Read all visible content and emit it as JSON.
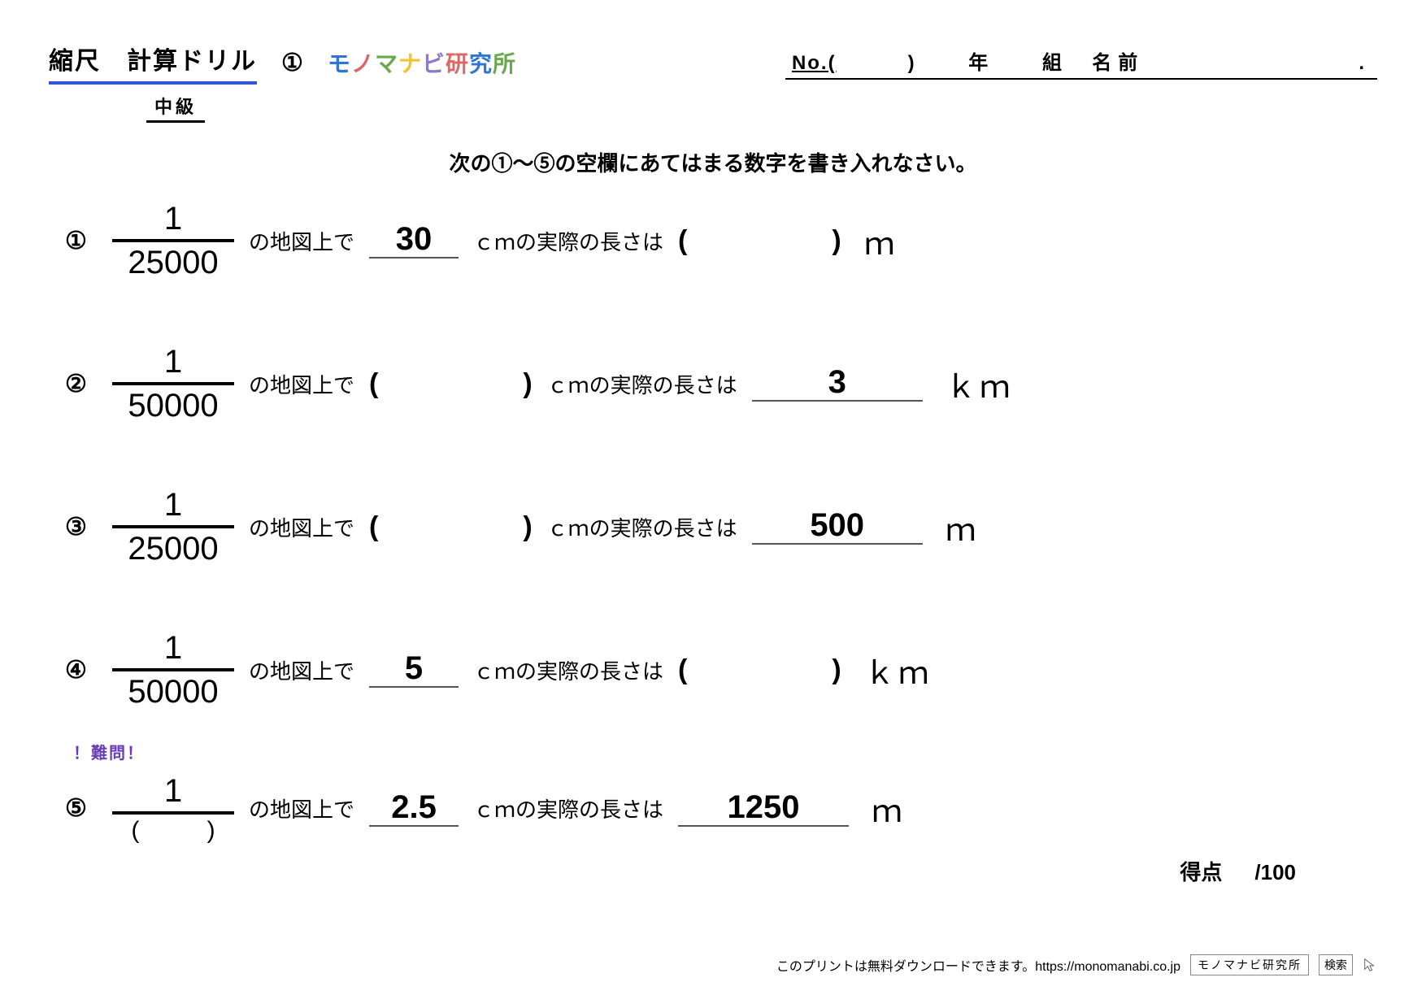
{
  "header": {
    "title": "縮尺　計算ドリル",
    "sheet_number": "①",
    "logo_chars": [
      "モ",
      "ノ",
      "マ",
      "ナ",
      "ビ",
      "研",
      "究",
      "所"
    ],
    "info": {
      "no_label": "No.(",
      "no_close": ")",
      "year": "年",
      "class": "組",
      "name": "名前",
      "end": "."
    },
    "level": "中級"
  },
  "instruction": "次の①〜⑤の空欄にあてはまる数字を書き入れなさい。",
  "problems": [
    {
      "num": "①",
      "frac_top": "1",
      "frac_bot": "25000",
      "text_after_frac": "の地図上で",
      "map_value": "30",
      "map_is_given": true,
      "mid_text": "ｃｍの実際の長さは",
      "real_value": "",
      "real_is_given": false,
      "unit": "ｍ",
      "hard": false
    },
    {
      "num": "②",
      "frac_top": "1",
      "frac_bot": "50000",
      "text_after_frac": "の地図上で",
      "map_value": "",
      "map_is_given": false,
      "mid_text": "ｃｍの実際の長さは",
      "real_value": "3",
      "real_is_given": true,
      "unit": "ｋｍ",
      "hard": false
    },
    {
      "num": "③",
      "frac_top": "1",
      "frac_bot": "25000",
      "text_after_frac": "の地図上で",
      "map_value": "",
      "map_is_given": false,
      "mid_text": "ｃｍの実際の長さは",
      "real_value": "500",
      "real_is_given": true,
      "unit": "ｍ",
      "hard": false
    },
    {
      "num": "④",
      "frac_top": "1",
      "frac_bot": "50000",
      "text_after_frac": "の地図上で",
      "map_value": "5",
      "map_is_given": true,
      "mid_text": "ｃｍの実際の長さは",
      "real_value": "",
      "real_is_given": false,
      "unit": "ｋｍ",
      "hard": false
    },
    {
      "num": "⑤",
      "frac_top": "1",
      "frac_bot_blank": true,
      "text_after_frac": "の地図上で",
      "map_value": "2.5",
      "map_is_given": true,
      "mid_text": "ｃｍの実際の長さは",
      "real_value": "1250",
      "real_is_given": true,
      "unit": "ｍ",
      "hard": true,
      "hard_label": "！難問！"
    }
  ],
  "score": {
    "label": "得点",
    "max": "/100"
  },
  "footer": {
    "text": "このプリントは無料ダウンロードできます。https://monomanabi.co.jp",
    "search_box": "モノマナビ研究所",
    "search_btn": "検索"
  },
  "colors": {
    "rule": "#3355dd",
    "hard": "#6a3db5"
  }
}
